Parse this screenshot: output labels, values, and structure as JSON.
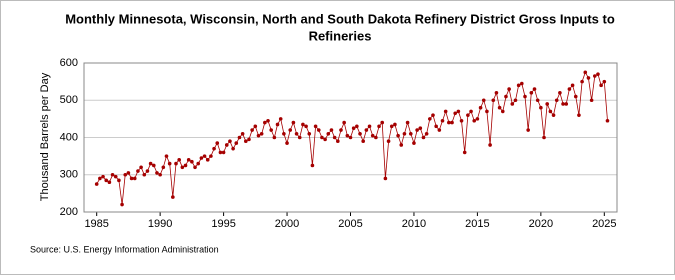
{
  "chart_data": {
    "type": "line",
    "title": [
      "Monthly Minnesota, Wisconsin, North and South Dakota Refinery District Gross Inputs to",
      "Refineries"
    ],
    "y_label": "Thousand Barrels per Day",
    "source": "Source: U.S. Energy Information Administration",
    "color": "#a50000",
    "x": [
      1985,
      1985.25,
      1985.5,
      1985.75,
      1986,
      1986.25,
      1986.5,
      1986.75,
      1987,
      1987.25,
      1987.5,
      1987.75,
      1988,
      1988.25,
      1988.5,
      1988.75,
      1989,
      1989.25,
      1989.5,
      1989.75,
      1990,
      1990.25,
      1990.5,
      1990.75,
      1991,
      1991.25,
      1991.5,
      1991.75,
      1992,
      1992.25,
      1992.5,
      1992.75,
      1993,
      1993.25,
      1993.5,
      1993.75,
      1994,
      1994.25,
      1994.5,
      1994.75,
      1995,
      1995.25,
      1995.5,
      1995.75,
      1996,
      1996.25,
      1996.5,
      1996.75,
      1997,
      1997.25,
      1997.5,
      1997.75,
      1998,
      1998.25,
      1998.5,
      1998.75,
      1999,
      1999.25,
      1999.5,
      1999.75,
      2000,
      2000.25,
      2000.5,
      2000.75,
      2001,
      2001.25,
      2001.5,
      2001.75,
      2002,
      2002.25,
      2002.5,
      2002.75,
      2003,
      2003.25,
      2003.5,
      2003.75,
      2004,
      2004.25,
      2004.5,
      2004.75,
      2005,
      2005.25,
      2005.5,
      2005.75,
      2006,
      2006.25,
      2006.5,
      2006.75,
      2007,
      2007.25,
      2007.5,
      2007.75,
      2008,
      2008.25,
      2008.5,
      2008.75,
      2009,
      2009.25,
      2009.5,
      2009.75,
      2010,
      2010.25,
      2010.5,
      2010.75,
      2011,
      2011.25,
      2011.5,
      2011.75,
      2012,
      2012.25,
      2012.5,
      2012.75,
      2013,
      2013.25,
      2013.5,
      2013.75,
      2014,
      2014.25,
      2014.5,
      2014.75,
      2015,
      2015.25,
      2015.5,
      2015.75,
      2016,
      2016.25,
      2016.5,
      2016.75,
      2017,
      2017.25,
      2017.5,
      2017.75,
      2018,
      2018.25,
      2018.5,
      2018.75,
      2019,
      2019.25,
      2019.5,
      2019.75,
      2020,
      2020.25,
      2020.5,
      2020.75,
      2021,
      2021.25,
      2021.5,
      2021.75,
      2022,
      2022.25,
      2022.5,
      2022.75,
      2023,
      2023.25,
      2023.5,
      2023.75,
      2024,
      2024.25,
      2024.5,
      2024.75,
      2025,
      2025.25
    ],
    "values": [
      275,
      290,
      295,
      285,
      280,
      300,
      295,
      285,
      220,
      300,
      305,
      290,
      290,
      310,
      320,
      300,
      310,
      330,
      325,
      305,
      300,
      320,
      350,
      330,
      240,
      330,
      340,
      320,
      325,
      340,
      335,
      320,
      330,
      345,
      350,
      340,
      350,
      370,
      385,
      360,
      360,
      380,
      390,
      370,
      385,
      400,
      410,
      390,
      395,
      420,
      430,
      405,
      410,
      440,
      445,
      420,
      400,
      435,
      450,
      410,
      385,
      420,
      440,
      410,
      400,
      435,
      430,
      410,
      325,
      430,
      420,
      400,
      395,
      410,
      420,
      400,
      390,
      420,
      440,
      405,
      400,
      425,
      430,
      410,
      390,
      420,
      430,
      405,
      400,
      430,
      440,
      290,
      390,
      430,
      435,
      405,
      380,
      410,
      440,
      410,
      385,
      420,
      425,
      400,
      410,
      450,
      460,
      430,
      420,
      445,
      470,
      440,
      440,
      465,
      470,
      445,
      360,
      460,
      470,
      445,
      450,
      480,
      500,
      470,
      380,
      500,
      520,
      480,
      470,
      510,
      530,
      490,
      500,
      540,
      545,
      510,
      420,
      520,
      530,
      500,
      480,
      400,
      490,
      470,
      460,
      500,
      520,
      490,
      490,
      530,
      540,
      510,
      460,
      550,
      575,
      560,
      500,
      565,
      570,
      540,
      550,
      445
    ],
    "xlim": [
      1984,
      2026
    ],
    "xticks": [
      1985,
      1990,
      1995,
      2000,
      2005,
      2010,
      2015,
      2020,
      2025
    ],
    "ylim": [
      200,
      600
    ],
    "yticks": [
      200,
      300,
      400,
      500,
      600
    ],
    "grid": true
  }
}
